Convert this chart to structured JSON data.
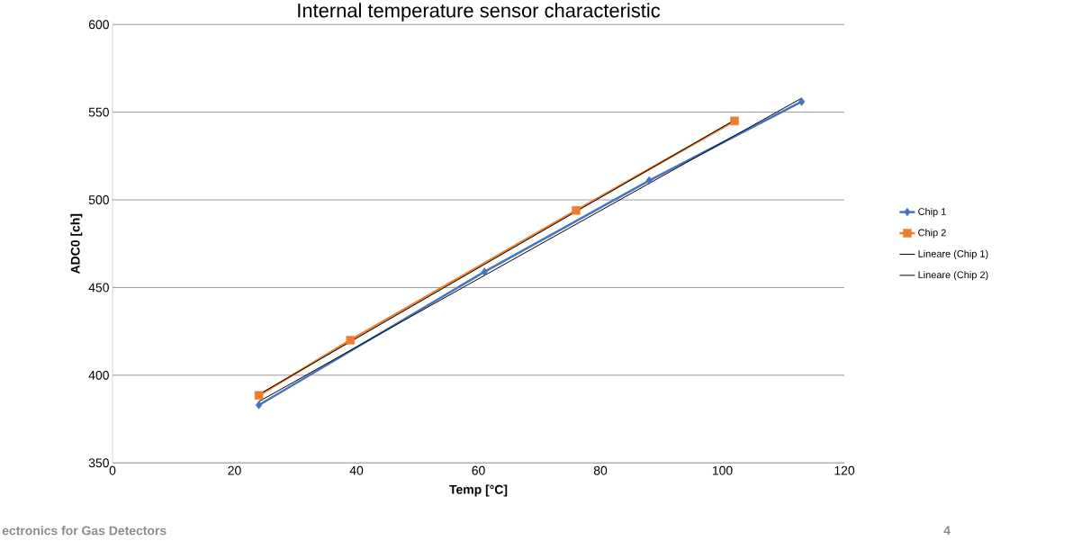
{
  "chart_data": {
    "type": "line",
    "title": "Internal temperature sensor characteristic",
    "xlabel": "Temp [°C]",
    "ylabel": "ADC0 [ch]",
    "xlim": [
      0,
      120
    ],
    "xticks": [
      0,
      20,
      40,
      60,
      80,
      100,
      120
    ],
    "ylim": [
      350,
      600
    ],
    "yticks": [
      350,
      400,
      450,
      500,
      550,
      600
    ],
    "grid": "y",
    "legend": "right",
    "series": [
      {
        "name": "Chip 1",
        "color": "#4472c4",
        "marker": "diamond",
        "x": [
          24,
          61,
          88,
          113
        ],
        "values": [
          383,
          459,
          511,
          556
        ]
      },
      {
        "name": "Chip 2",
        "color": "#ed7d31",
        "marker": "square",
        "x": [
          24,
          39,
          76,
          102
        ],
        "values": [
          388.5,
          420,
          494,
          545
        ]
      },
      {
        "name": "Lineare (Chip 1)",
        "color": "#000000",
        "marker": "none",
        "x": [
          24,
          113
        ],
        "values": [
          385,
          558
        ]
      },
      {
        "name": "Lineare (Chip 2)",
        "color": "#000000",
        "marker": "none",
        "x": [
          24,
          102
        ],
        "values": [
          389,
          545.5
        ]
      }
    ],
    "annotations": [
      "ectronics for Gas Detectors",
      "4"
    ]
  }
}
